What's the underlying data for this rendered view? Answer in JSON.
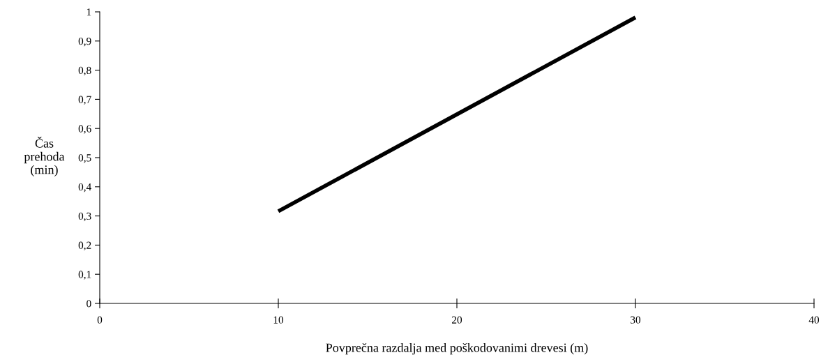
{
  "chart_data": {
    "type": "line",
    "xlabel": "Povprečna razdalja med poškodovanimi drevesi (m)",
    "ylabel": "Čas\nprehoda\n(min)",
    "x": [
      10,
      30
    ],
    "series": [
      {
        "color": "#000000",
        "values": [
          0.316,
          0.981
        ]
      }
    ],
    "xlim": [
      0,
      40
    ],
    "xticks": [
      0,
      10,
      20,
      30,
      40
    ],
    "ylim": [
      0,
      1
    ],
    "yticks": [
      0,
      {
        "value": 0.1,
        "label": "0,1"
      },
      {
        "value": 0.2,
        "label": "0,2"
      },
      {
        "value": 0.3,
        "label": "0,3"
      },
      {
        "value": 0.4,
        "label": "0,4"
      },
      {
        "value": 0.5,
        "label": "0,5"
      },
      {
        "value": 0.6,
        "label": "0,6"
      },
      {
        "value": 0.7,
        "label": "0,7"
      },
      {
        "value": 0.8,
        "label": "0,8"
      },
      {
        "value": 0.9,
        "label": "0,9"
      },
      1
    ],
    "grid": false,
    "legend": false,
    "marker": "none",
    "line_style": "solid"
  }
}
